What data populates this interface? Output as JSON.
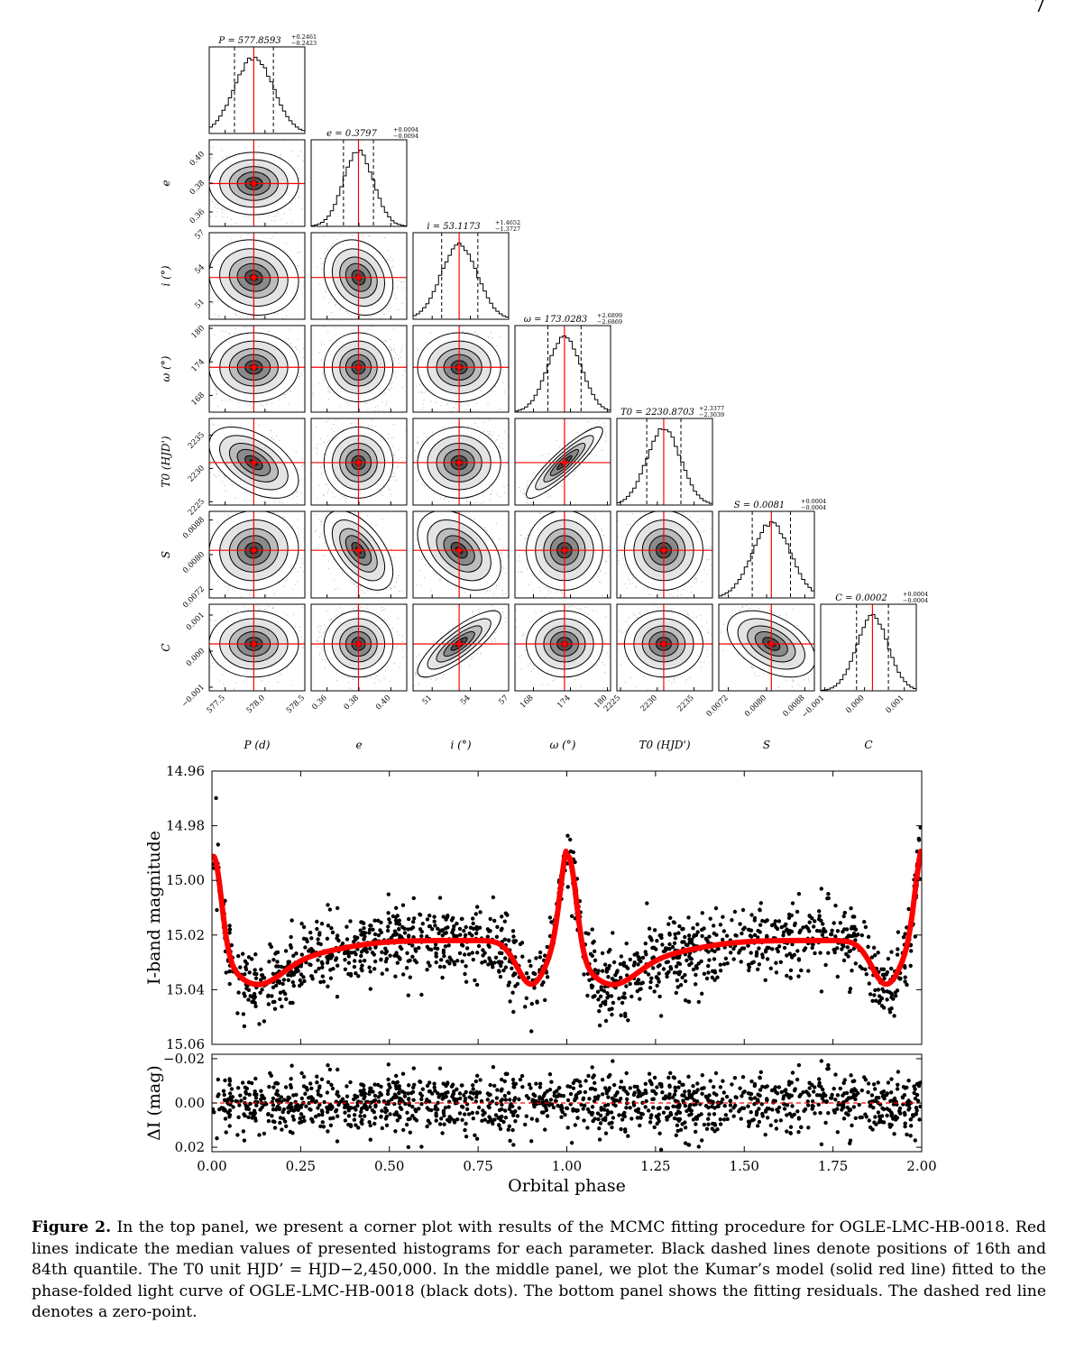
{
  "page_number": "7",
  "caption": {
    "label": "Figure 2.",
    "text": "In the top panel, we present a corner plot with results of the MCMC fitting procedure for OGLE-LMC-HB-0018. Red lines indicate the median values of presented histograms for each parameter. Black dashed lines denote positions of 16th and 84th quantile. The T0 unit HJD’ = HJD−2,450,000. In the middle panel, we plot the Kumar’s model (solid red line) fitted to the phase-folded light curve of OGLE-LMC-HB-0018 (black dots). The bottom panel shows the fitting residuals. The dashed red line denotes a zero-point."
  },
  "chart_data": [
    {
      "type": "corner",
      "colors": {
        "median": "#ff0000",
        "quantile": "#000000",
        "points": "#000000"
      },
      "parameters": [
        {
          "key": "P",
          "xlabel": "P (d)",
          "ylabel": "",
          "title": "P = 577.8593",
          "plus": "+0.2461",
          "minus": "−0.2423",
          "median": 577.8593,
          "q16": 577.617,
          "q84": 578.1054,
          "range": [
            577.3,
            578.5
          ],
          "ticks": [
            577.5,
            578.0,
            578.5
          ],
          "ticklabels": [
            "577.5",
            "578.0",
            "578.5"
          ]
        },
        {
          "key": "e",
          "xlabel": "e",
          "ylabel": "e",
          "title": "e = 0.3797",
          "plus": "+0.0094",
          "minus": "−0.0094",
          "median": 0.3797,
          "q16": 0.3703,
          "q84": 0.3891,
          "range": [
            0.35,
            0.41
          ],
          "ticks": [
            0.36,
            0.38,
            0.4
          ],
          "ticklabels": [
            "0.36",
            "0.38",
            "0.40"
          ]
        },
        {
          "key": "i",
          "xlabel": "i (°)",
          "ylabel": "i (°)",
          "title": "i = 53.1173",
          "plus": "+1.4652",
          "minus": "−1.3727",
          "median": 53.1173,
          "q16": 51.7446,
          "q84": 54.5825,
          "range": [
            49.5,
            57.0
          ],
          "ticks": [
            51,
            54,
            57
          ],
          "ticklabels": [
            "51",
            "54",
            "57"
          ]
        },
        {
          "key": "omega",
          "xlabel": "ω (°)",
          "ylabel": "ω (°)",
          "title": "ω = 173.0283",
          "plus": "+2.6899",
          "minus": "−2.6869",
          "median": 173.0283,
          "q16": 170.3414,
          "q84": 175.7182,
          "range": [
            165.0,
            180.5
          ],
          "ticks": [
            168,
            174,
            180
          ],
          "ticklabels": [
            "168",
            "174",
            "180"
          ]
        },
        {
          "key": "T0",
          "xlabel": "T0 (HJD')",
          "ylabel": "T0 (HJD')",
          "title": "T0 = 2230.8703",
          "plus": "+2.3377",
          "minus": "−2.3039",
          "median": 2230.8703,
          "q16": 2228.5664,
          "q84": 2233.208,
          "range": [
            2224.5,
            2237.5
          ],
          "ticks": [
            2225,
            2230,
            2235
          ],
          "ticklabels": [
            "2225",
            "2230",
            "2235"
          ]
        },
        {
          "key": "S",
          "xlabel": "S",
          "ylabel": "S",
          "title": "S = 0.0081",
          "plus": "+0.0004",
          "minus": "−0.0004",
          "median": 0.0081,
          "q16": 0.0077,
          "q84": 0.0085,
          "range": [
            0.007,
            0.009
          ],
          "ticks": [
            0.0072,
            0.008,
            0.0088
          ],
          "ticklabels": [
            "0.0072",
            "0.0080",
            "0.0088"
          ]
        },
        {
          "key": "C",
          "xlabel": "C",
          "ylabel": "C",
          "title": "C = 0.0002",
          "plus": "+0.0004",
          "minus": "−0.0004",
          "median": 0.0002,
          "q16": -0.0002,
          "q84": 0.0006,
          "range": [
            -0.0011,
            0.0013
          ],
          "ticks": [
            -0.001,
            0.0,
            0.001
          ],
          "ticklabels": [
            "−0.001",
            "0.000",
            "0.001"
          ]
        }
      ],
      "correlations": {
        "T0-omega": 0.9,
        "C-i": 0.82,
        "T0-P": -0.5,
        "S-e": -0.55,
        "S-i": -0.4,
        "C-S": -0.45,
        "i-e": -0.2,
        "i-P": -0.1,
        "S-P": 0.05,
        "C-P": 0.0
      }
    },
    {
      "type": "scatter",
      "xlabel": "Orbital phase",
      "ylabel": "I-band magnitude",
      "xlim": [
        0.0,
        2.0
      ],
      "ylim": [
        15.06,
        14.96
      ],
      "yinverted": true,
      "xticks": [
        0.0,
        0.25,
        0.5,
        0.75,
        1.0,
        1.25,
        1.5,
        1.75,
        2.0
      ],
      "xticklabels": [
        "0.00",
        "0.25",
        "0.50",
        "0.75",
        "1.00",
        "1.25",
        "1.50",
        "1.75",
        "2.00"
      ],
      "yticks": [
        14.96,
        14.98,
        15.0,
        15.02,
        15.04,
        15.06
      ],
      "yticklabels": [
        "14.96",
        "14.98",
        "15.00",
        "15.02",
        "15.04",
        "15.06"
      ],
      "series": [
        {
          "role": "points",
          "color": "#000000"
        },
        {
          "role": "model",
          "color": "#ff0000",
          "model": {
            "baseline": 15.022,
            "dip_phase": 0.12,
            "dip_mag": 15.0355,
            "peak_phase": 0.005,
            "peak_mag": 14.9865,
            "min2_phase": 0.9,
            "min2_mag": 15.038
          }
        }
      ],
      "residuals": {
        "ylabel": "ΔI (mag)",
        "ylim": [
          0.022,
          -0.022
        ],
        "yticks": [
          -0.02,
          0.0,
          0.02
        ],
        "yticklabels": [
          "−0.02",
          "0.00",
          "0.02"
        ],
        "zero_line": "#ff0000",
        "scatter": 0.0065
      }
    }
  ]
}
